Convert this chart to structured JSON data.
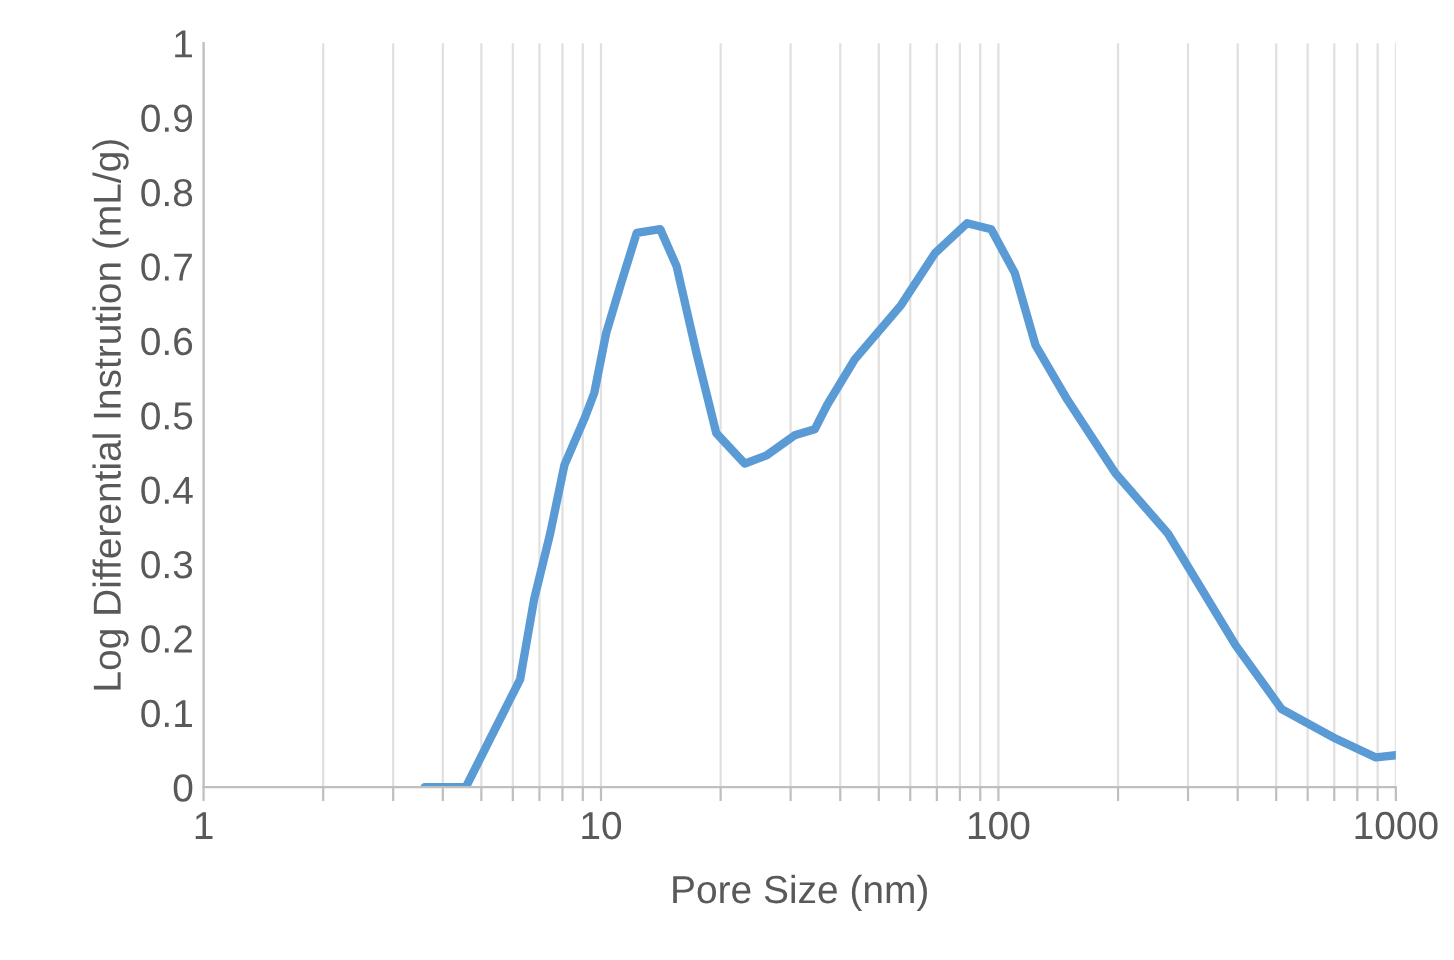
{
  "chart_data": {
    "type": "line",
    "xlabel": "Pore Size (nm)",
    "ylabel": "Log Differential Instrution (mL/g)",
    "log": "x",
    "grid": "x",
    "marker": "none",
    "line_style": "solid",
    "xlim": [
      1,
      1000
    ],
    "ylim": [
      0,
      1
    ],
    "xticks": [
      1,
      {
        "value": 2,
        "label": null
      },
      {
        "value": 3,
        "label": null
      },
      {
        "value": 4,
        "label": null
      },
      {
        "value": 5,
        "label": null
      },
      {
        "value": 6,
        "label": null
      },
      {
        "value": 7,
        "label": null
      },
      {
        "value": 8,
        "label": null
      },
      {
        "value": 9,
        "label": null
      },
      10,
      {
        "value": 20,
        "label": null
      },
      {
        "value": 30,
        "label": null
      },
      {
        "value": 40,
        "label": null
      },
      {
        "value": 50,
        "label": null
      },
      {
        "value": 60,
        "label": null
      },
      {
        "value": 70,
        "label": null
      },
      {
        "value": 80,
        "label": null
      },
      {
        "value": 90,
        "label": null
      },
      100,
      {
        "value": 200,
        "label": null
      },
      {
        "value": 300,
        "label": null
      },
      {
        "value": 400,
        "label": null
      },
      {
        "value": 500,
        "label": null
      },
      {
        "value": 600,
        "label": null
      },
      {
        "value": 700,
        "label": null
      },
      {
        "value": 800,
        "label": null
      },
      {
        "value": 900,
        "label": null
      },
      1000
    ],
    "yticks": [
      0,
      0.1,
      0.2,
      0.3,
      0.4,
      0.5,
      0.6,
      0.7,
      0.8,
      0.9,
      1
    ],
    "series": [
      {
        "color": "#5b9bd5",
        "x": [
          3.6,
          4.57,
          5.26,
          6.26,
          6.79,
          7.45,
          8.09,
          9.08,
          9.62,
          10.3,
          11.2,
          12.3,
          14.1,
          15.5,
          17.4,
          19.5,
          23.0,
          26.1,
          30.7,
          34.5,
          37,
          43.5,
          56.9,
          69.3,
          83.4,
          95.9,
          110,
          124,
          149,
          197,
          267,
          395,
          516,
          707,
          891,
          1000
        ],
        "values": [
          0,
          0,
          0.065,
          0.145,
          0.253,
          0.341,
          0.433,
          0.495,
          0.53,
          0.61,
          0.675,
          0.745,
          0.75,
          0.7,
          0.583,
          0.476,
          0.435,
          0.446,
          0.473,
          0.481,
          0.513,
          0.575,
          0.648,
          0.718,
          0.758,
          0.75,
          0.691,
          0.594,
          0.521,
          0.422,
          0.341,
          0.191,
          0.105,
          0.065,
          0.04,
          0.043
        ]
      }
    ]
  }
}
